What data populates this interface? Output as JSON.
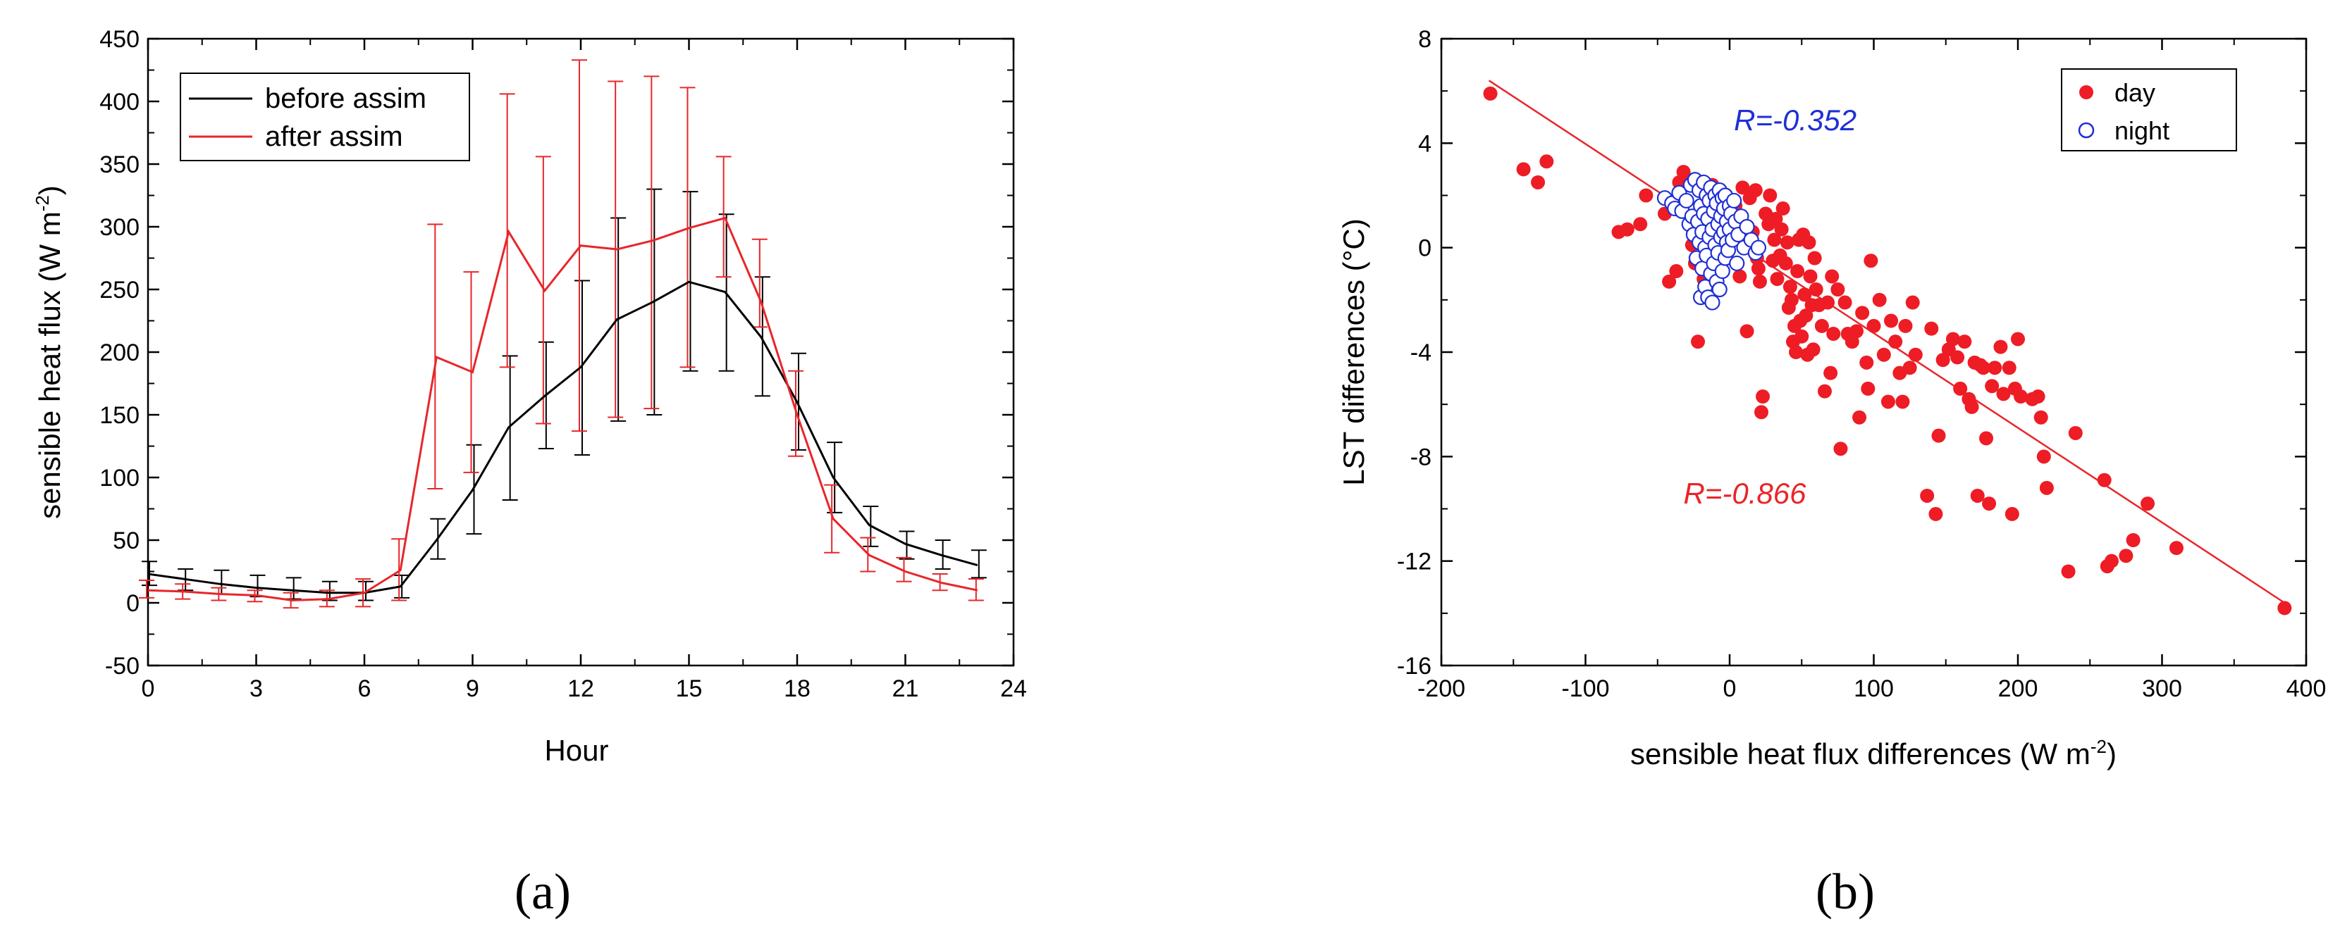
{
  "chart_data": [
    {
      "type": "line",
      "title": "",
      "xlabel": "Hour",
      "ylabel": "sensible heat flux (W m",
      "ylabel_sup": "-2",
      "ylabel_close": ")",
      "xlim": [
        0,
        24
      ],
      "ylim": [
        -50,
        450
      ],
      "x_ticks": [
        "0",
        "3",
        "6",
        "9",
        "12",
        "15",
        "18",
        "21",
        "24"
      ],
      "y_ticks": [
        "-50",
        "0",
        "50",
        "100",
        "150",
        "200",
        "250",
        "300",
        "350",
        "400",
        "450"
      ],
      "legend_position": "top-left",
      "panel_label": "(a)",
      "x": [
        0,
        1,
        2,
        3,
        4,
        5,
        6,
        7,
        8,
        9,
        10,
        11,
        12,
        13,
        14,
        15,
        16,
        17,
        18,
        19,
        20,
        21,
        22,
        23
      ],
      "series": [
        {
          "name": "before assim",
          "color": "#000000",
          "values": [
            23,
            19,
            15,
            12,
            10,
            8,
            8,
            13,
            50,
            90,
            140,
            165,
            188,
            226,
            240,
            256,
            248,
            212,
            160,
            100,
            62,
            47,
            38,
            30
          ],
          "err_low": [
            14,
            10,
            7,
            5,
            3,
            2,
            2,
            4,
            35,
            55,
            82,
            123,
            118,
            145,
            150,
            185,
            185,
            165,
            122,
            72,
            45,
            35,
            27,
            20
          ],
          "err_high": [
            33,
            27,
            26,
            22,
            20,
            17,
            17,
            22,
            67,
            126,
            197,
            208,
            257,
            307,
            330,
            328,
            310,
            260,
            199,
            128,
            77,
            57,
            50,
            42
          ]
        },
        {
          "name": "after assim",
          "color": "#e8262a",
          "values": [
            10,
            9,
            7,
            6,
            2,
            3,
            8,
            26,
            196,
            184,
            296,
            249,
            285,
            282,
            289,
            299,
            307,
            240,
            150,
            67,
            38,
            25,
            16,
            10
          ],
          "err_low": [
            4,
            3,
            2,
            1,
            -4,
            -3,
            -3,
            2,
            91,
            104,
            188,
            143,
            137,
            148,
            155,
            188,
            260,
            220,
            117,
            40,
            25,
            17,
            10,
            2
          ],
          "err_high": [
            18,
            15,
            12,
            10,
            8,
            10,
            19,
            51,
            302,
            264,
            406,
            356,
            433,
            416,
            420,
            411,
            356,
            290,
            185,
            94,
            52,
            36,
            23,
            19
          ]
        }
      ]
    },
    {
      "type": "scatter",
      "title": "",
      "xlabel": "sensible heat flux differences (W m",
      "xlabel_sup": "-2",
      "xlabel_close": ")",
      "ylabel": "LST differences (°C)",
      "xlim": [
        -200,
        400
      ],
      "ylim": [
        -16,
        8
      ],
      "x_ticks": [
        "-200",
        "-100",
        "0",
        "100",
        "200",
        "300",
        "400"
      ],
      "y_ticks": [
        "-16",
        "-12",
        "-8",
        "-4",
        "0",
        "4",
        "8"
      ],
      "legend_position": "top-right",
      "panel_label": "(b)",
      "annotations": [
        {
          "text": "R=-0.352",
          "color": "#1f2fd6",
          "x": 3,
          "y": 4.5
        },
        {
          "text": "R=-0.866",
          "color": "#e8262a",
          "x": -32,
          "y": -9.8
        }
      ],
      "regression_line": {
        "color": "#e8262a",
        "x": [
          -167,
          385
        ],
        "y": [
          6.4,
          -13.6
        ]
      },
      "series": [
        {
          "name": "day",
          "color": "#ee1c25",
          "marker": "filled-circle",
          "points": [
            [
              -166,
              5.9
            ],
            [
              -143,
              3.0
            ],
            [
              -133,
              2.5
            ],
            [
              -127,
              3.3
            ],
            [
              -77,
              0.6
            ],
            [
              -71,
              0.7
            ],
            [
              -62,
              0.9
            ],
            [
              -58,
              2.0
            ],
            [
              -45,
              1.3
            ],
            [
              -42,
              -1.3
            ],
            [
              -37,
              -0.9
            ],
            [
              -35,
              2.5
            ],
            [
              -32,
              2.9
            ],
            [
              -30,
              1.8
            ],
            [
              -28,
              2.6
            ],
            [
              -26,
              0.1
            ],
            [
              -24,
              -0.6
            ],
            [
              -22,
              -3.6
            ],
            [
              -20,
              2.2
            ],
            [
              -18,
              -1.2
            ],
            [
              -15,
              0.5
            ],
            [
              -12,
              2.4
            ],
            [
              -10,
              1.9
            ],
            [
              -8,
              2.1
            ],
            [
              -6,
              1.2
            ],
            [
              -4,
              1.4
            ],
            [
              -2,
              0.2
            ],
            [
              1,
              0.8
            ],
            [
              4,
              1.6
            ],
            [
              7,
              -1.1
            ],
            [
              9,
              2.3
            ],
            [
              10,
              0.4
            ],
            [
              12,
              -3.2
            ],
            [
              14,
              1.9
            ],
            [
              16,
              0.6
            ],
            [
              18,
              2.2
            ],
            [
              19,
              -0.4
            ],
            [
              20,
              -0.8
            ],
            [
              21,
              -1.3
            ],
            [
              22,
              -6.3
            ],
            [
              23,
              -5.7
            ],
            [
              25,
              1.3
            ],
            [
              27,
              0.9
            ],
            [
              28,
              2.0
            ],
            [
              30,
              -0.5
            ],
            [
              31,
              0.3
            ],
            [
              32,
              1.1
            ],
            [
              33,
              -1.2
            ],
            [
              35,
              -0.3
            ],
            [
              36,
              0.7
            ],
            [
              37,
              1.5
            ],
            [
              39,
              -0.6
            ],
            [
              40,
              0.2
            ],
            [
              41,
              -2.3
            ],
            [
              42,
              -1.5
            ],
            [
              43,
              -2.0
            ],
            [
              44,
              -3.6
            ],
            [
              45,
              -3.0
            ],
            [
              46,
              -4.0
            ],
            [
              47,
              -0.9
            ],
            [
              48,
              0.3
            ],
            [
              49,
              -2.8
            ],
            [
              50,
              -3.4
            ],
            [
              51,
              0.5
            ],
            [
              52,
              -1.8
            ],
            [
              53,
              -2.6
            ],
            [
              54,
              -4.1
            ],
            [
              55,
              0.2
            ],
            [
              56,
              -1.1
            ],
            [
              57,
              -2.2
            ],
            [
              58,
              -3.9
            ],
            [
              59,
              -0.4
            ],
            [
              60,
              -1.6
            ],
            [
              62,
              -2.2
            ],
            [
              64,
              -3.0
            ],
            [
              66,
              -5.5
            ],
            [
              68,
              -2.1
            ],
            [
              70,
              -4.8
            ],
            [
              71,
              -1.1
            ],
            [
              72,
              -3.3
            ],
            [
              75,
              -1.6
            ],
            [
              77,
              -7.7
            ],
            [
              80,
              -2.1
            ],
            [
              82,
              -3.3
            ],
            [
              85,
              -3.6
            ],
            [
              88,
              -3.2
            ],
            [
              90,
              -6.5
            ],
            [
              92,
              -2.5
            ],
            [
              95,
              -4.4
            ],
            [
              96,
              -5.4
            ],
            [
              98,
              -0.5
            ],
            [
              100,
              -3.0
            ],
            [
              104,
              -2.0
            ],
            [
              107,
              -4.1
            ],
            [
              110,
              -5.9
            ],
            [
              112,
              -2.8
            ],
            [
              115,
              -3.6
            ],
            [
              118,
              -4.8
            ],
            [
              120,
              -5.9
            ],
            [
              122,
              -3.0
            ],
            [
              125,
              -4.6
            ],
            [
              127,
              -2.1
            ],
            [
              129,
              -4.1
            ],
            [
              137,
              -9.5
            ],
            [
              140,
              -3.1
            ],
            [
              143,
              -10.2
            ],
            [
              145,
              -7.2
            ],
            [
              148,
              -4.3
            ],
            [
              152,
              -3.9
            ],
            [
              155,
              -3.5
            ],
            [
              158,
              -4.2
            ],
            [
              160,
              -5.4
            ],
            [
              163,
              -3.6
            ],
            [
              166,
              -5.8
            ],
            [
              168,
              -6.1
            ],
            [
              170,
              -4.4
            ],
            [
              172,
              -9.5
            ],
            [
              174,
              -4.5
            ],
            [
              176,
              -4.6
            ],
            [
              178,
              -7.3
            ],
            [
              180,
              -9.8
            ],
            [
              182,
              -5.3
            ],
            [
              184,
              -4.6
            ],
            [
              188,
              -3.8
            ],
            [
              190,
              -5.6
            ],
            [
              194,
              -4.6
            ],
            [
              196,
              -10.2
            ],
            [
              198,
              -5.4
            ],
            [
              200,
              -3.5
            ],
            [
              202,
              -5.7
            ],
            [
              210,
              -5.8
            ],
            [
              214,
              -5.7
            ],
            [
              216,
              -6.5
            ],
            [
              218,
              -8.0
            ],
            [
              220,
              -9.2
            ],
            [
              235,
              -12.4
            ],
            [
              240,
              -7.1
            ],
            [
              260,
              -8.9
            ],
            [
              262,
              -12.2
            ],
            [
              265,
              -12.0
            ],
            [
              275,
              -11.8
            ],
            [
              280,
              -11.2
            ],
            [
              290,
              -9.8
            ],
            [
              310,
              -11.5
            ],
            [
              385,
              -13.8
            ]
          ]
        },
        {
          "name": "night",
          "color": "#1f2fd6",
          "marker": "open-circle",
          "points": [
            [
              -45,
              1.9
            ],
            [
              -40,
              1.7
            ],
            [
              -38,
              1.5
            ],
            [
              -35,
              2.1
            ],
            [
              -33,
              1.4
            ],
            [
              -30,
              1.8
            ],
            [
              -28,
              0.9
            ],
            [
              -27,
              2.4
            ],
            [
              -26,
              1.2
            ],
            [
              -25,
              0.5
            ],
            [
              -24,
              2.6
            ],
            [
              -23,
              -0.4
            ],
            [
              -22,
              1.0
            ],
            [
              -21,
              0.2
            ],
            [
              -21,
              2.2
            ],
            [
              -20,
              -1.9
            ],
            [
              -20,
              1.6
            ],
            [
              -19,
              0.6
            ],
            [
              -19,
              -0.8
            ],
            [
              -18,
              2.5
            ],
            [
              -18,
              1.3
            ],
            [
              -17,
              -1.5
            ],
            [
              -17,
              0.0
            ],
            [
              -16,
              2.0
            ],
            [
              -16,
              -0.3
            ],
            [
              -15,
              1.1
            ],
            [
              -15,
              -1.9
            ],
            [
              -14,
              0.4
            ],
            [
              -14,
              1.8
            ],
            [
              -13,
              -1.0
            ],
            [
              -13,
              2.3
            ],
            [
              -12,
              0.7
            ],
            [
              -12,
              -2.1
            ],
            [
              -11,
              1.4
            ],
            [
              -11,
              -0.6
            ],
            [
              -10,
              2.0
            ],
            [
              -10,
              0.1
            ],
            [
              -9,
              -1.3
            ],
            [
              -9,
              1.7
            ],
            [
              -8,
              0.9
            ],
            [
              -8,
              -0.2
            ],
            [
              -7,
              2.2
            ],
            [
              -7,
              -1.6
            ],
            [
              -6,
              1.2
            ],
            [
              -6,
              0.4
            ],
            [
              -5,
              1.9
            ],
            [
              -5,
              -0.9
            ],
            [
              -4,
              0.6
            ],
            [
              -4,
              1.5
            ],
            [
              -3,
              -0.4
            ],
            [
              -3,
              2.0
            ],
            [
              -2,
              0.2
            ],
            [
              -2,
              1.0
            ],
            [
              -1,
              -0.1
            ],
            [
              0,
              1.6
            ],
            [
              0,
              0.7
            ],
            [
              1,
              1.3
            ],
            [
              2,
              0.3
            ],
            [
              3,
              1.8
            ],
            [
              4,
              1.0
            ],
            [
              5,
              -0.6
            ],
            [
              6,
              0.5
            ],
            [
              8,
              1.2
            ],
            [
              10,
              0.0
            ],
            [
              12,
              0.8
            ],
            [
              15,
              0.3
            ],
            [
              18,
              -0.2
            ],
            [
              20,
              0.0
            ]
          ]
        }
      ]
    }
  ]
}
